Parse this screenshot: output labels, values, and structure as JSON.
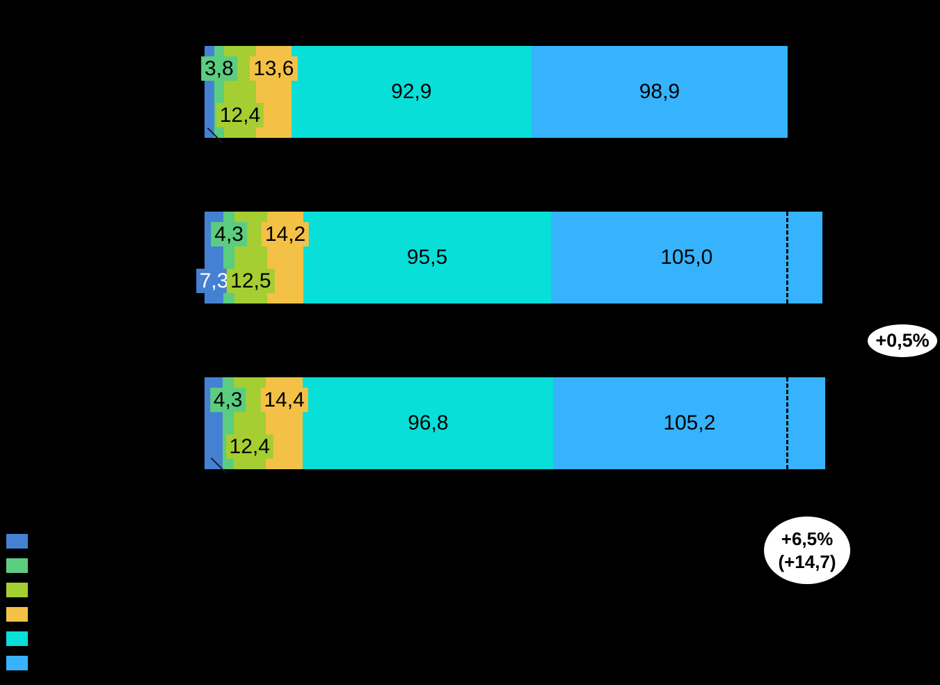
{
  "chart_data": {
    "type": "bar",
    "orientation": "horizontal",
    "stacked": true,
    "title": "",
    "xlabel": "",
    "ylabel": "",
    "grid": false,
    "legend_position": "bottom-left",
    "palette": [
      "#4581D3",
      "#5BCD80",
      "#A4CE32",
      "#F3C146",
      "#07DFD8",
      "#36B3FC"
    ],
    "series_names": [
      "segment-blue",
      "segment-green",
      "segment-lime",
      "segment-yellow",
      "segment-cyan",
      "segment-lightblue"
    ],
    "rows": [
      {
        "values": [
          3.7,
          3.8,
          12.4,
          13.6,
          92.9,
          98.9
        ],
        "labels": [
          null,
          "3,8",
          "12,4",
          "13,6",
          "92,9",
          "98,9"
        ],
        "dashed_ref": false,
        "leader_line": true
      },
      {
        "values": [
          7.3,
          4.3,
          12.5,
          14.2,
          95.5,
          105.0
        ],
        "labels": [
          "7,3",
          "4,3",
          "12,5",
          "14,2",
          "95,5",
          "105,0"
        ],
        "dashed_ref": true,
        "leader_line": false
      },
      {
        "values": [
          6.9,
          4.3,
          12.4,
          14.4,
          96.8,
          105.2
        ],
        "labels": [
          null,
          "4,3",
          "12,4",
          "14,4",
          "96,8",
          "105,2"
        ],
        "dashed_ref": true,
        "leader_line": true
      }
    ],
    "totals": [
      225.3,
      238.8,
      240.0
    ],
    "reference_total": 225.3,
    "annotations": [
      {
        "text": "+0,5%"
      },
      {
        "text": "+6,5%",
        "text2": "(+14,7)"
      }
    ]
  }
}
